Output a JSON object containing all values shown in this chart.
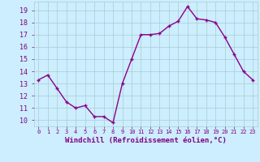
{
  "x": [
    0,
    1,
    2,
    3,
    4,
    5,
    6,
    7,
    8,
    9,
    10,
    11,
    12,
    13,
    14,
    15,
    16,
    17,
    18,
    19,
    20,
    21,
    22,
    23
  ],
  "y": [
    13.3,
    13.7,
    12.6,
    11.5,
    11.0,
    11.2,
    10.3,
    10.3,
    9.8,
    13.0,
    15.0,
    17.0,
    17.0,
    17.1,
    17.7,
    18.1,
    19.3,
    18.3,
    18.2,
    18.0,
    16.8,
    15.4,
    14.0,
    13.3
  ],
  "line_color": "#8b008b",
  "marker": "+",
  "marker_size": 3.5,
  "linewidth": 1.0,
  "bg_color": "#cceeff",
  "grid_color": "#aacccc",
  "xlabel": "Windchill (Refroidissement éolien,°C)",
  "xlabel_fontsize": 6.5,
  "ylabel_ticks": [
    10,
    11,
    12,
    13,
    14,
    15,
    16,
    17,
    18,
    19
  ],
  "xlim": [
    -0.5,
    23.5
  ],
  "ylim": [
    9.5,
    19.7
  ],
  "xtick_labels": [
    "0",
    "1",
    "2",
    "3",
    "4",
    "5",
    "6",
    "7",
    "8",
    "9",
    "10",
    "11",
    "12",
    "13",
    "14",
    "15",
    "16",
    "17",
    "18",
    "19",
    "20",
    "21",
    "22",
    "23"
  ],
  "title_color": "#800080",
  "font_family": "monospace",
  "ytick_fontsize": 6.0,
  "xtick_fontsize": 5.0
}
